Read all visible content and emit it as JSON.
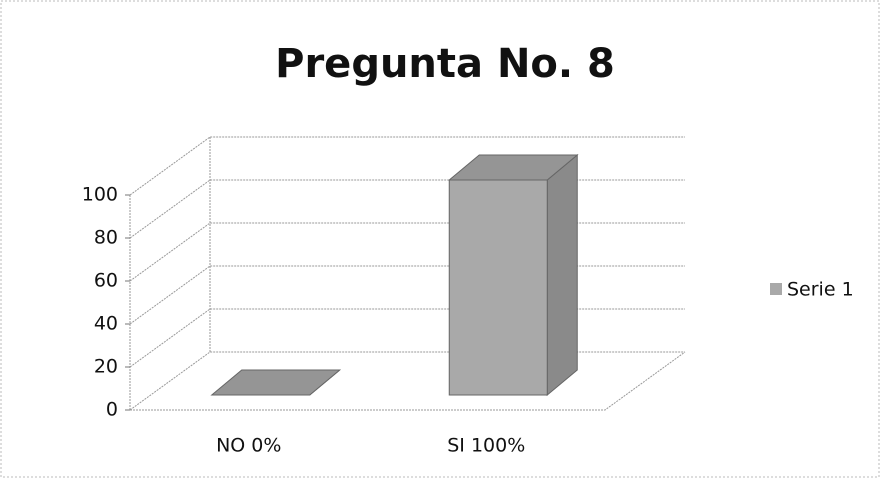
{
  "chart_data": {
    "type": "bar3d",
    "title": "Pregunta No. 8",
    "categories": [
      "NO 0%",
      "SI 100%"
    ],
    "series": [
      {
        "name": "Serie 1",
        "color": "#a9a9a9",
        "values": [
          0,
          100
        ]
      }
    ],
    "ylim": [
      0,
      100
    ],
    "yticks": [
      0,
      20,
      40,
      60,
      80,
      100
    ],
    "grid": true,
    "legend": "right"
  }
}
